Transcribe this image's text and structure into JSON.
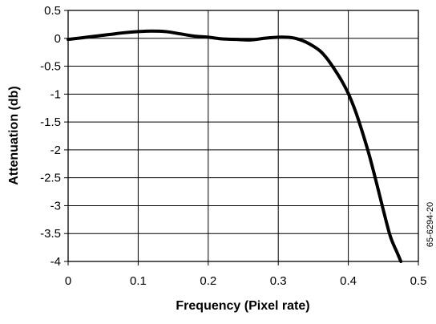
{
  "chart_data": {
    "type": "line",
    "xlabel": "Frequency (Pixel rate)",
    "ylabel": "Attenuation (db)",
    "xlim": [
      0,
      0.5
    ],
    "ylim": [
      -4,
      0.5
    ],
    "x_ticks": [
      0,
      0.1,
      0.2,
      0.3,
      0.4,
      0.5
    ],
    "x_tick_labels": [
      "0",
      "0.1",
      "0.2",
      "0.3",
      "0.4",
      "0.5"
    ],
    "y_ticks": [
      0.5,
      0,
      -0.5,
      -1,
      -1.5,
      -2,
      -2.5,
      -3,
      -3.5,
      -4
    ],
    "y_tick_labels": [
      "0.5",
      "0",
      "-0.5",
      "-1",
      "-1.5",
      "-2",
      "-2.5",
      "-3",
      "-3.5",
      "-4"
    ],
    "grid": true,
    "series": [
      {
        "x": [
          0,
          0.02,
          0.04,
          0.06,
          0.08,
          0.1,
          0.12,
          0.14,
          0.16,
          0.18,
          0.2,
          0.22,
          0.24,
          0.26,
          0.28,
          0.3,
          0.31,
          0.32,
          0.33,
          0.34,
          0.35,
          0.36,
          0.37,
          0.38,
          0.39,
          0.4,
          0.41,
          0.42,
          0.43,
          0.44,
          0.45,
          0.46,
          0.47,
          0.475
        ],
        "y": [
          -0.02,
          0.01,
          0.04,
          0.07,
          0.1,
          0.12,
          0.13,
          0.12,
          0.08,
          0.04,
          0.02,
          -0.01,
          -0.02,
          -0.03,
          0.0,
          0.02,
          0.02,
          0.01,
          -0.02,
          -0.07,
          -0.14,
          -0.23,
          -0.37,
          -0.55,
          -0.75,
          -0.99,
          -1.3,
          -1.68,
          -2.1,
          -2.58,
          -3.08,
          -3.55,
          -3.85,
          -4.0
        ]
      }
    ]
  },
  "figure_id": "65-6294-20"
}
